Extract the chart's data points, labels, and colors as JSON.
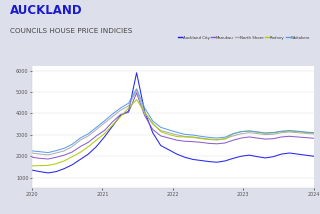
{
  "title": "AUCKLAND",
  "subtitle": "COUNCILS HOUSE PRICE INDICIES",
  "title_color": "#1a1acc",
  "subtitle_color": "#444444",
  "background_color": "#dde0ea",
  "chart_bg": "#ffffff",
  "legend_labels": [
    "Auckland City",
    "Manukau",
    "North Shore",
    "Rodney",
    "Waitakere"
  ],
  "line_colors": [
    "#1a1aee",
    "#8855cc",
    "#aaaaaa",
    "#aacc00",
    "#5599ee"
  ],
  "ylim": [
    500,
    6200
  ],
  "yticks": [
    1000,
    2000,
    3000,
    4000,
    5000,
    6000
  ],
  "x_tick_labels": [
    "2020",
    "2021",
    "2022",
    "2023",
    "2024"
  ],
  "series": {
    "Auckland City": [
      1350,
      1280,
      1220,
      1280,
      1420,
      1600,
      1850,
      2100,
      2450,
      2900,
      3400,
      3900,
      4100,
      5900,
      4100,
      3100,
      2500,
      2300,
      2100,
      1950,
      1850,
      1800,
      1750,
      1720,
      1780,
      1900,
      2000,
      2050,
      1980,
      1920,
      1980,
      2100,
      2150,
      2100,
      2050,
      2000
    ],
    "Manukau": [
      1950,
      1900,
      1870,
      1950,
      2050,
      2200,
      2450,
      2650,
      2950,
      3200,
      3600,
      3950,
      4050,
      4950,
      3900,
      3250,
      2950,
      2850,
      2750,
      2700,
      2680,
      2650,
      2600,
      2580,
      2620,
      2750,
      2850,
      2900,
      2850,
      2800,
      2820,
      2900,
      2930,
      2900,
      2870,
      2840
    ],
    "North Shore": [
      2150,
      2100,
      2060,
      2150,
      2250,
      2450,
      2750,
      2950,
      3250,
      3550,
      3850,
      4150,
      4350,
      5050,
      4050,
      3500,
      3200,
      3100,
      3000,
      2920,
      2900,
      2850,
      2800,
      2780,
      2820,
      2950,
      3050,
      3100,
      3060,
      3010,
      3030,
      3100,
      3130,
      3100,
      3070,
      3040
    ],
    "Rodney": [
      1550,
      1560,
      1570,
      1650,
      1780,
      1980,
      2180,
      2450,
      2750,
      3050,
      3450,
      3850,
      4250,
      4650,
      4050,
      3550,
      3150,
      3020,
      2920,
      2900,
      2880,
      2820,
      2780,
      2760,
      2800,
      3050,
      3150,
      3180,
      3120,
      3070,
      3090,
      3150,
      3180,
      3150,
      3110,
      3080
    ],
    "Waitakere": [
      2250,
      2210,
      2170,
      2260,
      2370,
      2560,
      2850,
      3050,
      3350,
      3650,
      3970,
      4250,
      4480,
      5150,
      4250,
      3650,
      3350,
      3230,
      3120,
      3020,
      2990,
      2930,
      2880,
      2850,
      2890,
      3050,
      3150,
      3180,
      3140,
      3090,
      3110,
      3170,
      3200,
      3170,
      3130,
      3100
    ]
  }
}
